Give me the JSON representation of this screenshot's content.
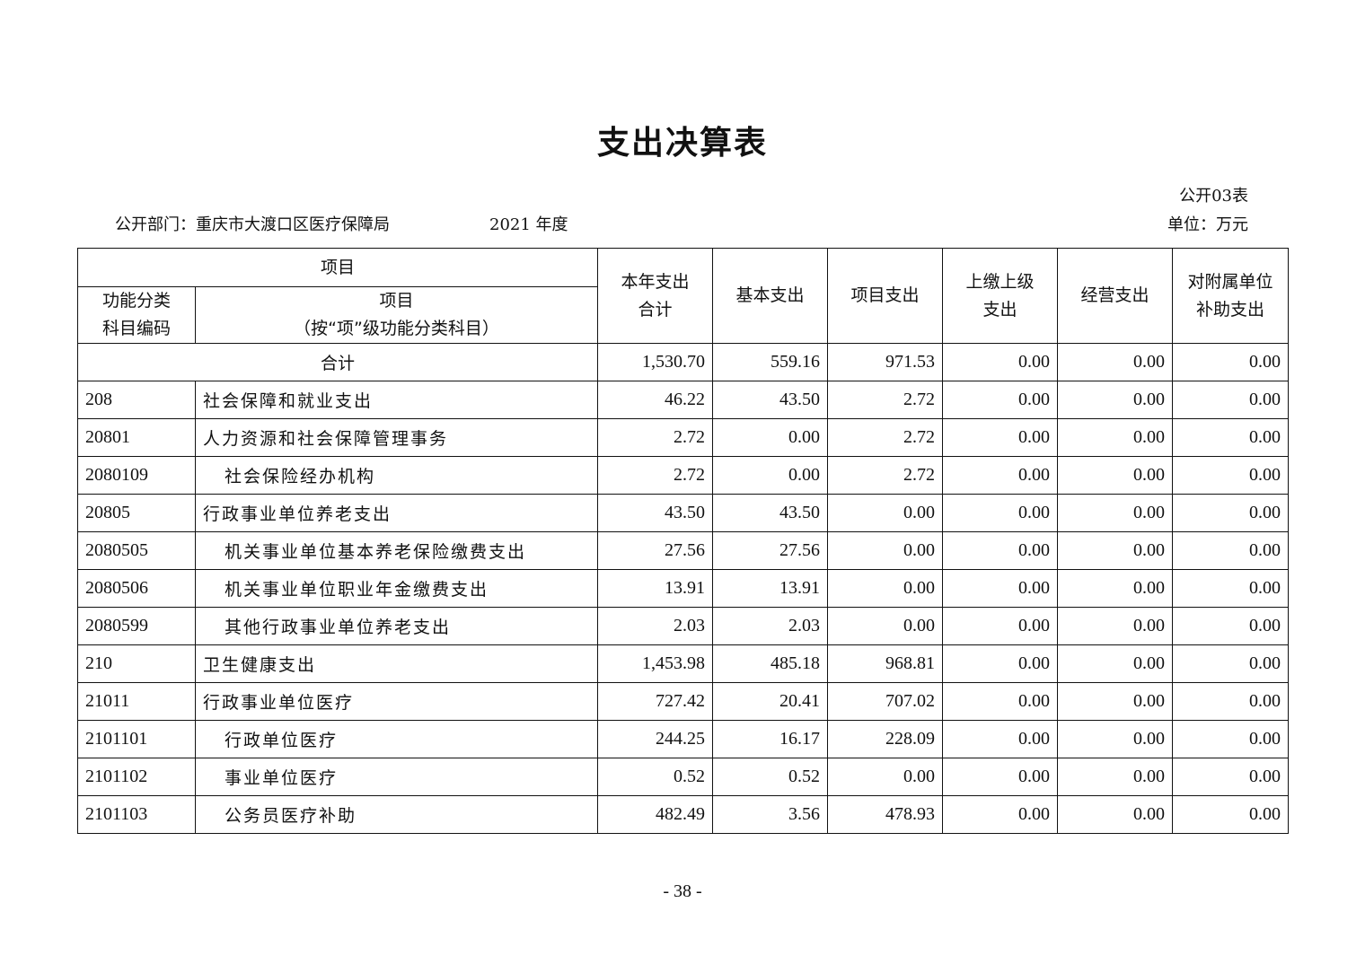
{
  "title": "支出决算表",
  "table_no": "公开03表",
  "department": "公开部门：重庆市大渡口区医疗保障局",
  "year": "2021 年度",
  "unit": "单位：万元",
  "headers": {
    "item_group": "项目",
    "code": "功能分类\n科目编码",
    "item": "项目\n（按“项”级功能分类科目）",
    "total": "本年支出\n合计",
    "basic": "基本支出",
    "project": "项目支出",
    "upper": "上缴上级\n支出",
    "business": "经营支出",
    "subsidy": "对附属单位\n补助支出"
  },
  "total_row": {
    "label": "合计",
    "values": [
      "1,530.70",
      "559.16",
      "971.53",
      "0.00",
      "0.00",
      "0.00"
    ]
  },
  "rows": [
    {
      "code": "208",
      "name": "社会保障和就业支出",
      "indent": false,
      "values": [
        "46.22",
        "43.50",
        "2.72",
        "0.00",
        "0.00",
        "0.00"
      ]
    },
    {
      "code": "20801",
      "name": "人力资源和社会保障管理事务",
      "indent": false,
      "values": [
        "2.72",
        "0.00",
        "2.72",
        "0.00",
        "0.00",
        "0.00"
      ]
    },
    {
      "code": "2080109",
      "name": "社会保险经办机构",
      "indent": true,
      "values": [
        "2.72",
        "0.00",
        "2.72",
        "0.00",
        "0.00",
        "0.00"
      ]
    },
    {
      "code": "20805",
      "name": "行政事业单位养老支出",
      "indent": false,
      "values": [
        "43.50",
        "43.50",
        "0.00",
        "0.00",
        "0.00",
        "0.00"
      ]
    },
    {
      "code": "2080505",
      "name": "机关事业单位基本养老保险缴费支出",
      "indent": true,
      "values": [
        "27.56",
        "27.56",
        "0.00",
        "0.00",
        "0.00",
        "0.00"
      ]
    },
    {
      "code": "2080506",
      "name": "机关事业单位职业年金缴费支出",
      "indent": true,
      "values": [
        "13.91",
        "13.91",
        "0.00",
        "0.00",
        "0.00",
        "0.00"
      ]
    },
    {
      "code": "2080599",
      "name": "其他行政事业单位养老支出",
      "indent": true,
      "values": [
        "2.03",
        "2.03",
        "0.00",
        "0.00",
        "0.00",
        "0.00"
      ]
    },
    {
      "code": "210",
      "name": "卫生健康支出",
      "indent": false,
      "values": [
        "1,453.98",
        "485.18",
        "968.81",
        "0.00",
        "0.00",
        "0.00"
      ]
    },
    {
      "code": "21011",
      "name": "行政事业单位医疗",
      "indent": false,
      "values": [
        "727.42",
        "20.41",
        "707.02",
        "0.00",
        "0.00",
        "0.00"
      ]
    },
    {
      "code": "2101101",
      "name": "行政单位医疗",
      "indent": true,
      "values": [
        "244.25",
        "16.17",
        "228.09",
        "0.00",
        "0.00",
        "0.00"
      ]
    },
    {
      "code": "2101102",
      "name": "事业单位医疗",
      "indent": true,
      "values": [
        "0.52",
        "0.52",
        "0.00",
        "0.00",
        "0.00",
        "0.00"
      ]
    },
    {
      "code": "2101103",
      "name": "公务员医疗补助",
      "indent": true,
      "values": [
        "482.49",
        "3.56",
        "478.93",
        "0.00",
        "0.00",
        "0.00"
      ]
    }
  ],
  "page_number": "- 38 -"
}
